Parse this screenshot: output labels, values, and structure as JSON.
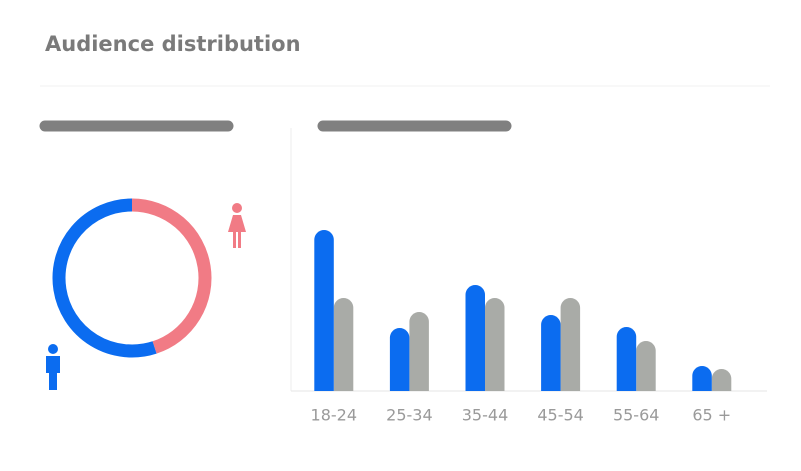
{
  "title": "Audience distribution",
  "chart_data": [
    {
      "type": "donut",
      "values": [
        45,
        55
      ],
      "colors": [
        "#f17b85",
        "#0b6cf0"
      ]
    },
    {
      "type": "bar",
      "categories": [
        "18-24",
        "25-34",
        "35-44",
        "45-54",
        "55-64",
        "65 +"
      ],
      "series": [
        {
          "color": "#0b6cf0",
          "values": [
            161,
            63,
            106,
            76,
            64,
            25
          ]
        },
        {
          "color": "#a9aba7",
          "values": [
            93,
            79,
            93,
            93,
            50,
            22
          ]
        }
      ],
      "ylim": [
        0,
        170
      ]
    }
  ]
}
